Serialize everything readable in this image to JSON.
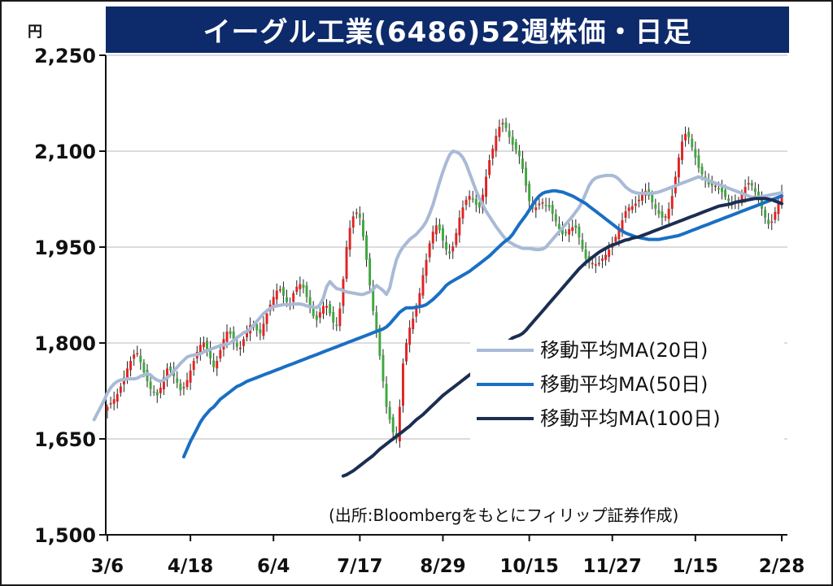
{
  "title": "イーグル工業(6486)52週株価・日足",
  "unit": "円",
  "source": "(出所:Bloombergをもとにフィリップ証券作成)",
  "chart_data": {
    "type": "candlestick",
    "title": "イーグル工業(6486)52週株価・日足",
    "ylabel": "円",
    "ylim": [
      1500,
      2250
    ],
    "yticks": [
      1500,
      1650,
      1800,
      1950,
      2100,
      2250
    ],
    "ytick_labels": [
      "1,500",
      "1,650",
      "1,800",
      "1,950",
      "2,100",
      "2,250"
    ],
    "xtick_labels": [
      "3/6",
      "4/18",
      "6/4",
      "7/17",
      "8/29",
      "10/15",
      "11/27",
      "1/15",
      "2/28"
    ],
    "grid": true,
    "legend_position": "right",
    "up_color": "#e32222",
    "down_color": "#3ea83e",
    "close": [
      1700,
      1706,
      1712,
      1720,
      1732,
      1746,
      1760,
      1772,
      1782,
      1784,
      1770,
      1754,
      1740,
      1728,
      1722,
      1718,
      1730,
      1746,
      1760,
      1757,
      1748,
      1738,
      1726,
      1731,
      1742,
      1757,
      1772,
      1786,
      1797,
      1801,
      1790,
      1776,
      1762,
      1772,
      1789,
      1806,
      1818,
      1814,
      1801,
      1794,
      1793,
      1806,
      1818,
      1828,
      1826,
      1820,
      1815,
      1830,
      1846,
      1860,
      1872,
      1882,
      1884,
      1874,
      1864,
      1861,
      1878,
      1888,
      1892,
      1886,
      1872,
      1858,
      1842,
      1836,
      1848,
      1858,
      1858,
      1846,
      1832,
      1828,
      1854,
      1900,
      1950,
      1980,
      1998,
      2004,
      1996,
      1966,
      1930,
      1890,
      1850,
      1820,
      1780,
      1740,
      1700,
      1680,
      1660,
      1650,
      1700,
      1768,
      1800,
      1824,
      1838,
      1856,
      1878,
      1906,
      1930,
      1956,
      1974,
      1984,
      1976,
      1960,
      1946,
      1940,
      1951,
      1972,
      1996,
      2012,
      2024,
      2030,
      2024,
      2016,
      2012,
      2032,
      2060,
      2086,
      2104,
      2124,
      2138,
      2144,
      2136,
      2122,
      2110,
      2102,
      2092,
      2072,
      2046,
      2022,
      2010,
      2012,
      2018,
      2020,
      2016,
      2012,
      2002,
      1990,
      1978,
      1970,
      1972,
      1978,
      1981,
      1980,
      1965,
      1947,
      1932,
      1925,
      1925,
      1923,
      1925,
      1932,
      1938,
      1946,
      1956,
      1966,
      1977,
      1992,
      2006,
      2012,
      2014,
      2018,
      2024,
      2034,
      2038,
      2030,
      2020,
      2010,
      2002,
      1996,
      1998,
      2010,
      2030,
      2060,
      2090,
      2115,
      2127,
      2122,
      2106,
      2090,
      2074,
      2064,
      2054,
      2048,
      2046,
      2046,
      2042,
      2036,
      2028,
      2022,
      2018,
      2018,
      2022,
      2032,
      2044,
      2050,
      2046,
      2036,
      2024,
      2010,
      1996,
      1986,
      1990,
      2005,
      2022,
      2036
    ],
    "series": [
      {
        "name": "移動平均MA(20日)",
        "color": "#a9bad6",
        "values": [
          1680,
          1690,
          1700,
          1710,
          1722,
          1730,
          1736,
          1740,
          1742,
          1743,
          1744,
          1744,
          1744,
          1745,
          1748,
          1750,
          1752,
          1750,
          1745,
          1742,
          1740,
          1742,
          1746,
          1750,
          1756,
          1762,
          1768,
          1773,
          1778,
          1780,
          1781,
          1782,
          1783,
          1786,
          1788,
          1790,
          1792,
          1794,
          1796,
          1797,
          1798,
          1800,
          1804,
          1808,
          1812,
          1816,
          1818,
          1822,
          1828,
          1834,
          1840,
          1846,
          1850,
          1854,
          1857,
          1858,
          1859,
          1860,
          1860,
          1860,
          1861,
          1861,
          1861,
          1860,
          1858,
          1857,
          1856,
          1855,
          1860,
          1870,
          1888,
          1896,
          1890,
          1885,
          1884,
          1882,
          1880,
          1879,
          1878,
          1877,
          1876,
          1876,
          1878,
          1880,
          1884,
          1890,
          1886,
          1882,
          1876,
          1886,
          1910,
          1930,
          1942,
          1950,
          1956,
          1962,
          1966,
          1970,
          1976,
          1982,
          1990,
          2002,
          2016,
          2034,
          2052,
          2068,
          2082,
          2094,
          2100,
          2099,
          2096,
          2090,
          2080,
          2066,
          2052,
          2038,
          2026,
          2016,
          2006,
          1998,
          1990,
          1982,
          1975,
          1968,
          1962,
          1958,
          1955,
          1952,
          1950,
          1948,
          1948,
          1948,
          1947,
          1946,
          1946,
          1947,
          1950,
          1956,
          1962,
          1968,
          1974,
          1980,
          1986,
          1992,
          1998,
          2005,
          2012,
          2022,
          2034,
          2046,
          2054,
          2058,
          2060,
          2061,
          2062,
          2062,
          2062,
          2060,
          2056,
          2050,
          2044,
          2040,
          2037,
          2035,
          2034,
          2034,
          2034,
          2034,
          2034,
          2035,
          2036,
          2038,
          2040,
          2042,
          2044,
          2046,
          2048,
          2050,
          2052,
          2054,
          2056,
          2058,
          2060,
          2058,
          2056,
          2054,
          2052,
          2050,
          2048,
          2046,
          2044,
          2042,
          2040,
          2038,
          2036,
          2034,
          2032,
          2030,
          2028,
          2028,
          2028,
          2029,
          2030,
          2031,
          2032,
          2033,
          2034,
          2035
        ]
      },
      {
        "name": "移動平均MA(50日)",
        "color": "#1a6fc4",
        "values": [
          1622,
          1634,
          1646,
          1656,
          1666,
          1676,
          1684,
          1690,
          1696,
          1700,
          1706,
          1712,
          1716,
          1720,
          1724,
          1728,
          1732,
          1734,
          1737,
          1740,
          1742,
          1744,
          1746,
          1748,
          1750,
          1752,
          1754,
          1756,
          1758,
          1760,
          1762,
          1764,
          1766,
          1768,
          1770,
          1772,
          1774,
          1776,
          1778,
          1780,
          1782,
          1784,
          1786,
          1788,
          1790,
          1792,
          1794,
          1796,
          1798,
          1800,
          1802,
          1804,
          1806,
          1808,
          1810,
          1812,
          1814,
          1816,
          1818,
          1820,
          1822,
          1825,
          1830,
          1836,
          1842,
          1848,
          1852,
          1855,
          1855,
          1855,
          1856,
          1857,
          1858,
          1860,
          1864,
          1868,
          1873,
          1878,
          1884,
          1890,
          1894,
          1897,
          1900,
          1903,
          1906,
          1909,
          1912,
          1916,
          1920,
          1924,
          1928,
          1932,
          1936,
          1941,
          1946,
          1951,
          1956,
          1960,
          1964,
          1970,
          1978,
          1986,
          1993,
          2000,
          2008,
          2016,
          2024,
          2030,
          2034,
          2036,
          2037,
          2038,
          2038,
          2037,
          2036,
          2034,
          2032,
          2030,
          2027,
          2024,
          2021,
          2018,
          2014,
          2010,
          2006,
          2002,
          1998,
          1994,
          1990,
          1986,
          1982,
          1978,
          1975,
          1972,
          1970,
          1968,
          1966,
          1965,
          1964,
          1963,
          1962,
          1962,
          1962,
          1962,
          1963,
          1964,
          1965,
          1966,
          1967,
          1968,
          1970,
          1972,
          1974,
          1976,
          1978,
          1980,
          1982,
          1984,
          1986,
          1988,
          1990,
          1992,
          1994,
          1996,
          1998,
          2000,
          2002,
          2004,
          2006,
          2008,
          2010,
          2012,
          2014,
          2016,
          2018,
          2020,
          2022,
          2024,
          2026,
          2028,
          2030
        ]
      },
      {
        "name": "移動平均MA(100日)",
        "color": "#1b2e52",
        "values": [
          1592,
          1594,
          1597,
          1600,
          1604,
          1608,
          1612,
          1616,
          1620,
          1624,
          1629,
          1634,
          1638,
          1642,
          1646,
          1650,
          1654,
          1658,
          1662,
          1666,
          1670,
          1675,
          1680,
          1684,
          1688,
          1693,
          1698,
          1703,
          1708,
          1713,
          1718,
          1722,
          1726,
          1730,
          1734,
          1738,
          1742,
          1746,
          1750,
          1754,
          1758,
          1762,
          1766,
          1770,
          1774,
          1778,
          1782,
          1786,
          1792,
          1798,
          1804,
          1808,
          1810,
          1812,
          1815,
          1820,
          1826,
          1832,
          1838,
          1844,
          1850,
          1856,
          1862,
          1868,
          1874,
          1880,
          1886,
          1892,
          1898,
          1904,
          1910,
          1916,
          1921,
          1926,
          1930,
          1934,
          1938,
          1942,
          1945,
          1948,
          1951,
          1953,
          1955,
          1957,
          1959,
          1961,
          1962,
          1964,
          1965,
          1966,
          1968,
          1970,
          1972,
          1974,
          1976,
          1978,
          1980,
          1982,
          1984,
          1986,
          1988,
          1990,
          1992,
          1994,
          1996,
          1998,
          2000,
          2002,
          2004,
          2006,
          2008,
          2010,
          2012,
          2014,
          2015,
          2016,
          2017,
          2018,
          2020,
          2021,
          2022,
          2023,
          2024,
          2025,
          2026,
          2026,
          2026,
          2026,
          2025,
          2024,
          2022,
          2020,
          2018
        ]
      }
    ]
  }
}
